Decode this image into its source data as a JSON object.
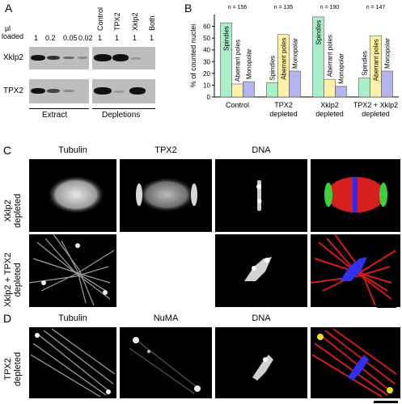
{
  "panels": {
    "A": "A",
    "B": "B",
    "C": "C",
    "D": "D"
  },
  "panelA": {
    "loaded_label_1": "µl",
    "loaded_label_2": "loaded",
    "amounts": [
      "1",
      "0.2",
      "0.05",
      "0.02",
      "1",
      "1",
      "1",
      "1"
    ],
    "column_labels": [
      "Control",
      "TPX2",
      "Xklp2",
      "Both"
    ],
    "row_labels": [
      "Xklp2",
      "TPX2"
    ],
    "group_labels": [
      "Extract",
      "Depletions"
    ]
  },
  "panelB": {
    "chart_data": {
      "type": "bar",
      "ylabel": "% of counted nuclei",
      "ylim": [
        0,
        70
      ],
      "yticks": [
        0,
        10,
        20,
        30,
        40,
        50,
        60
      ],
      "categories": [
        "Control",
        "TPX2 depleted",
        "Xklp2 depleted",
        "TPX2 + Xklp2 depleted"
      ],
      "category_lines": [
        [
          "Control"
        ],
        [
          "TPX2",
          "depleted"
        ],
        [
          "Xklp2",
          "depleted"
        ],
        [
          "TPX2 + Xklp2",
          "depleted"
        ]
      ],
      "n_labels": [
        "n = 156",
        "n = 135",
        "n = 190",
        "n = 147"
      ],
      "bar_labels": [
        "Spindles",
        "Aberrant poles",
        "Monopolar"
      ],
      "series": [
        {
          "values": [
            63,
            12,
            68,
            16
          ],
          "color": "#a8f0c8"
        },
        {
          "values": [
            11,
            53,
            15,
            52
          ],
          "color": "#fff2a8"
        },
        {
          "values": [
            13,
            22,
            9,
            22
          ],
          "color": "#b4b4f0"
        }
      ]
    }
  },
  "panelC": {
    "column_headers": [
      "Tubulin",
      "TPX2",
      "DNA"
    ],
    "row_labels": [
      [
        "Xklp2",
        "depleted"
      ],
      [
        "Xklp2 + TPX2",
        "depleted"
      ]
    ]
  },
  "panelD": {
    "column_headers": [
      "Tubulin",
      "NuMA",
      "DNA"
    ],
    "row_labels": [
      [
        "TPX2",
        "depleted"
      ]
    ]
  }
}
